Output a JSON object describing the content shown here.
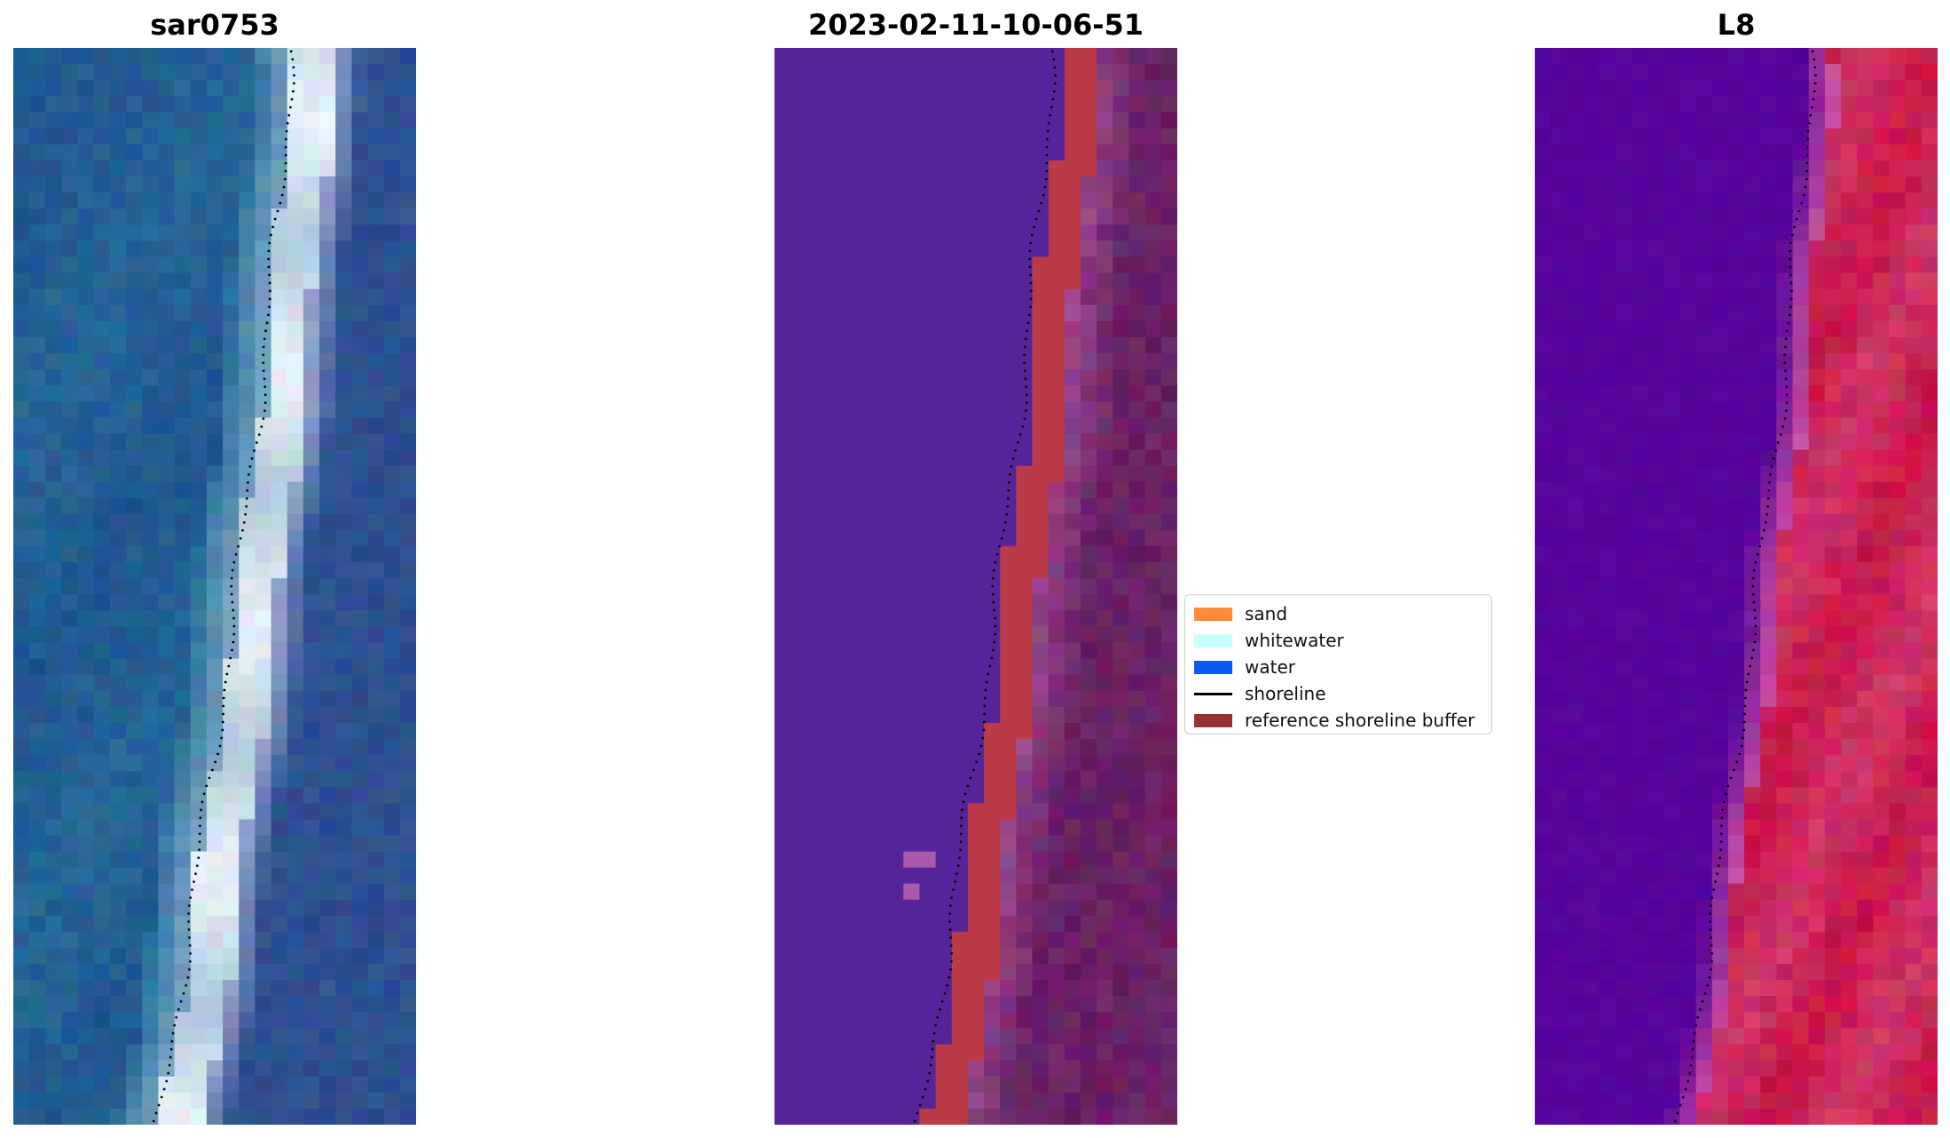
{
  "panels": [
    {
      "title": "sar0753",
      "kind": "rgb"
    },
    {
      "title": "2023-02-11-10-06-51",
      "kind": "classified"
    },
    {
      "title": "L8",
      "kind": "ndwi"
    }
  ],
  "legend": {
    "items": [
      {
        "label": "sand",
        "type": "patch",
        "color": "#ff8c3a"
      },
      {
        "label": "whitewater",
        "type": "patch",
        "color": "#c8ffff"
      },
      {
        "label": "water",
        "type": "patch",
        "color": "#0a5cf0"
      },
      {
        "label": "shoreline",
        "type": "line",
        "color": "#000000"
      },
      {
        "label": "reference shoreline buffer",
        "type": "patch",
        "color": "#9b3034"
      }
    ]
  },
  "colors": {
    "classified_water_purple": "#55249b",
    "buffer_red": "#bb3a48",
    "land_purple": "#6a2268",
    "ndwi_water": "#57059c",
    "ndwi_land": "#c8174a"
  }
}
